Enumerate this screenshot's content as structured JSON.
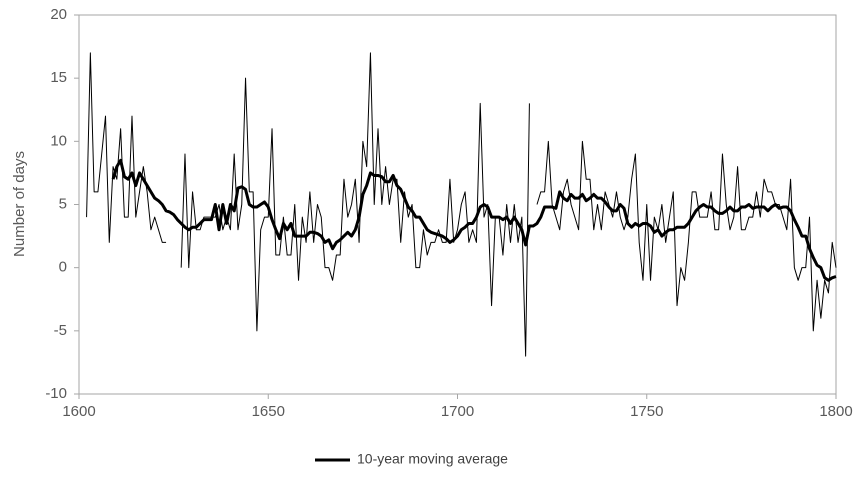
{
  "chart_data": {
    "type": "line",
    "y_label": "Number of days",
    "x": [
      1602,
      1603,
      1604,
      1605,
      1606,
      1607,
      1608,
      1609,
      1610,
      1611,
      1612,
      1613,
      1614,
      1615,
      1616,
      1617,
      1618,
      1619,
      1620,
      1621,
      1622,
      1623,
      1624,
      1625,
      1626,
      1627,
      1628,
      1629,
      1630,
      1631,
      1632,
      1633,
      1634,
      1635,
      1636,
      1637,
      1638,
      1639,
      1640,
      1641,
      1642,
      1643,
      1644,
      1645,
      1646,
      1647,
      1648,
      1649,
      1650,
      1651,
      1652,
      1653,
      1654,
      1655,
      1656,
      1657,
      1658,
      1659,
      1660,
      1661,
      1662,
      1663,
      1664,
      1665,
      1666,
      1667,
      1668,
      1669,
      1670,
      1671,
      1672,
      1673,
      1674,
      1675,
      1676,
      1677,
      1678,
      1679,
      1680,
      1681,
      1682,
      1683,
      1684,
      1685,
      1686,
      1687,
      1688,
      1689,
      1690,
      1691,
      1692,
      1693,
      1694,
      1695,
      1696,
      1697,
      1698,
      1699,
      1700,
      1701,
      1702,
      1703,
      1704,
      1705,
      1706,
      1707,
      1708,
      1709,
      1710,
      1711,
      1712,
      1713,
      1714,
      1715,
      1716,
      1717,
      1718,
      1719,
      1720,
      1721,
      1722,
      1723,
      1724,
      1725,
      1726,
      1727,
      1728,
      1729,
      1730,
      1731,
      1732,
      1733,
      1734,
      1735,
      1736,
      1737,
      1738,
      1739,
      1740,
      1741,
      1742,
      1743,
      1744,
      1745,
      1746,
      1747,
      1748,
      1749,
      1750,
      1751,
      1752,
      1753,
      1754,
      1755,
      1756,
      1757,
      1758,
      1759,
      1760,
      1761,
      1762,
      1763,
      1764,
      1765,
      1766,
      1767,
      1768,
      1769,
      1770,
      1771,
      1772,
      1773,
      1774,
      1775,
      1776,
      1777,
      1778,
      1779,
      1780,
      1781,
      1782,
      1783,
      1784,
      1785,
      1786,
      1787,
      1788,
      1789,
      1790,
      1791,
      1792,
      1793,
      1794,
      1795,
      1796,
      1797,
      1798,
      1799,
      1800
    ],
    "series": [
      {
        "color": "#000000",
        "values": [
          4,
          17,
          6,
          6,
          9,
          12,
          2,
          8,
          7,
          11,
          4,
          4,
          12,
          4,
          6,
          8,
          6,
          3,
          4,
          3,
          2,
          2,
          null,
          null,
          null,
          0,
          9,
          0,
          6,
          3,
          3,
          4,
          4,
          4,
          4,
          5,
          3,
          4,
          3,
          9,
          3,
          5,
          15,
          6,
          6,
          -5,
          3,
          4,
          4,
          11,
          1,
          1,
          4,
          1,
          1,
          5,
          -1,
          4,
          2,
          6,
          2,
          5,
          4,
          0,
          0,
          -1,
          1,
          1,
          7,
          4,
          5,
          7,
          2,
          10,
          8,
          17,
          5,
          11,
          5,
          8,
          5,
          7,
          7,
          2,
          6,
          4,
          5,
          0,
          0,
          3,
          1,
          2,
          2,
          3,
          2,
          2,
          7,
          2,
          3,
          5,
          6,
          2,
          3,
          2,
          13,
          4,
          5,
          -3,
          4,
          4,
          1,
          5,
          2,
          5,
          2,
          4,
          -7,
          13,
          null,
          5,
          6,
          6,
          10,
          5,
          4,
          3,
          6,
          7,
          5,
          4,
          3,
          10,
          7,
          7,
          3,
          5,
          3,
          6,
          5,
          4,
          6,
          4,
          3,
          4,
          7,
          9,
          2,
          -1,
          5,
          -1,
          4,
          3,
          5,
          2,
          4,
          6,
          -3,
          0,
          -1,
          2,
          6,
          6,
          4,
          4,
          4,
          6,
          3,
          3,
          9,
          5,
          3,
          4,
          8,
          3,
          3,
          4,
          4,
          6,
          4,
          7,
          6,
          6,
          5,
          5,
          4,
          3,
          7,
          0,
          -1,
          0,
          0,
          4,
          -5,
          -1,
          -4,
          -1,
          -2,
          2,
          0
        ]
      },
      {
        "name": "10-year moving average",
        "color": "#000000",
        "values": [
          null,
          null,
          null,
          null,
          null,
          null,
          null,
          7,
          8,
          8.5,
          7.2,
          7,
          7.5,
          6.5,
          7.5,
          7,
          6.5,
          6,
          5.5,
          5.3,
          5,
          4.5,
          4.4,
          4.2,
          3.8,
          3.5,
          3.2,
          3,
          3.2,
          3.2,
          3.5,
          3.8,
          3.8,
          3.8,
          5,
          3,
          5,
          3.5,
          5,
          4.5,
          6.3,
          6.4,
          6.2,
          5,
          4.8,
          4.8,
          5,
          5.2,
          4.8,
          3.8,
          3,
          2.3,
          3.5,
          3,
          3.5,
          2.5,
          2.5,
          2.5,
          2.5,
          2.8,
          2.8,
          2.7,
          2.5,
          2,
          2.2,
          1.5,
          2,
          2.2,
          2.5,
          2.8,
          2.5,
          3,
          4,
          5.8,
          6.5,
          7.5,
          7.3,
          7.3,
          7.2,
          6.8,
          6.8,
          7.3,
          6.5,
          6.2,
          5.5,
          4.8,
          4.5,
          4,
          4,
          3.5,
          3,
          2.8,
          2.7,
          2.6,
          2.5,
          2.3,
          2,
          2.2,
          2.5,
          3,
          3.2,
          3.5,
          3.5,
          4,
          4.8,
          5,
          4.8,
          4,
          4,
          4,
          3.8,
          4,
          3.5,
          4,
          3.5,
          3,
          1.8,
          3.3,
          3.3,
          3.5,
          4,
          4.8,
          4.8,
          4.8,
          4.7,
          6,
          5.5,
          5.3,
          5.8,
          5.5,
          5.5,
          5.8,
          5.3,
          5.5,
          5.8,
          5.5,
          5.5,
          5.2,
          4.8,
          4.5,
          4.5,
          5,
          4.7,
          3.5,
          3.2,
          3.5,
          3.3,
          3.5,
          3.5,
          3.3,
          2.8,
          3,
          2.5,
          2.8,
          3,
          3,
          3.2,
          3.2,
          3.2,
          3.5,
          4,
          4.5,
          4.8,
          5,
          4.8,
          4.8,
          4.5,
          4.3,
          4.3,
          4.5,
          4.8,
          4.5,
          4.5,
          4.8,
          4.8,
          5,
          4.7,
          4.8,
          4.8,
          4.8,
          4.5,
          4.8,
          5,
          4.7,
          4.8,
          4.8,
          4.5,
          3.8,
          3.2,
          2.5,
          2.5,
          1.5,
          0.8,
          0.2,
          0,
          -0.8,
          -1,
          -0.8,
          -0.7
        ]
      }
    ],
    "xlim": [
      1600,
      1800
    ],
    "xticks": [
      1600,
      1650,
      1700,
      1750,
      1800
    ],
    "ylim": [
      -10,
      20
    ],
    "yticks": [
      -10,
      -5,
      0,
      5,
      10,
      15,
      20
    ],
    "grid": false,
    "legend": "bottom"
  }
}
